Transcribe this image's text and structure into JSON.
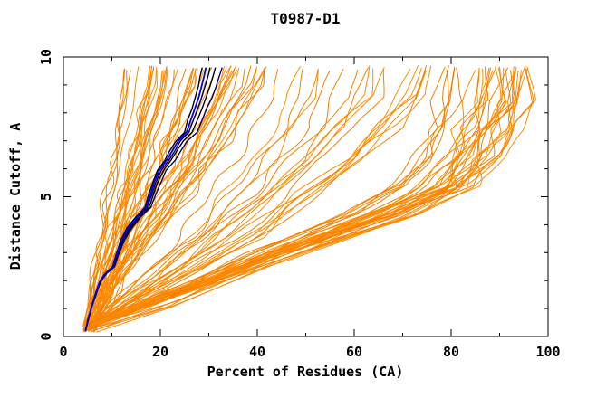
{
  "chart_data": {
    "type": "line",
    "title": "T0987-D1",
    "xlabel": "Percent of Residues (CA)",
    "ylabel": "Distance Cutoff, A",
    "xlim": [
      0,
      100
    ],
    "ylim": [
      0,
      10
    ],
    "x_ticks_major": [
      0,
      20,
      40,
      60,
      80,
      100
    ],
    "x_ticks_minor": [
      10,
      30,
      50,
      70,
      90
    ],
    "y_ticks_major": [
      0,
      5,
      10
    ],
    "y_ticks_minor": [
      1,
      2,
      3,
      4,
      6,
      7,
      8,
      9
    ],
    "grid": false,
    "legend": "none",
    "background_color": "#ffffff",
    "frame_color": "#000000",
    "series": {
      "highlight_bundle": {
        "description": "tight bundle of dark model curves with one bright blue core curve",
        "blue_curve": {
          "color": "#0000ee",
          "width": 1.8,
          "points": [
            [
              4.5,
              0.18
            ],
            [
              5.1,
              0.6
            ],
            [
              5.8,
              1.05
            ],
            [
              6.6,
              1.5
            ],
            [
              7.5,
              1.95
            ],
            [
              8.6,
              2.25
            ],
            [
              10.2,
              2.5
            ],
            [
              11.0,
              2.95
            ],
            [
              12.0,
              3.45
            ],
            [
              13.4,
              3.9
            ],
            [
              15.3,
              4.3
            ],
            [
              17.0,
              4.62
            ],
            [
              17.9,
              5.05
            ],
            [
              18.7,
              5.5
            ],
            [
              19.8,
              5.95
            ],
            [
              21.3,
              6.3
            ],
            [
              22.5,
              6.65
            ],
            [
              23.7,
              7.0
            ],
            [
              25.4,
              7.3
            ],
            [
              26.3,
              7.75
            ],
            [
              27.1,
              8.15
            ],
            [
              27.9,
              8.55
            ],
            [
              28.5,
              8.95
            ],
            [
              29.0,
              9.3
            ],
            [
              29.4,
              9.62
            ]
          ]
        },
        "dark_curves": {
          "count": 4,
          "colors": [
            "#000000",
            "#000060",
            "#000000",
            "#000070"
          ],
          "width": 1.4,
          "top_offsets": [
            -0.8,
            0.8,
            1.9,
            3.3
          ]
        }
      },
      "ensemble": {
        "description": "orange prediction model curves fanning from ~5% at 0A to 12-96% at ~9.6A",
        "colors": [
          "#ff8c00",
          "#f58000"
        ],
        "width": 1,
        "seed": 1987,
        "x_start_range": [
          4.0,
          7.0
        ],
        "y_start_range": [
          0.15,
          0.5
        ],
        "y_top_range": [
          9.5,
          9.7
        ],
        "wiggle": {
          "amp_range": [
            0.2,
            1.0
          ],
          "freq_range": [
            0.8,
            2.2
          ]
        },
        "groups": [
          {
            "name": "steep-left",
            "count": 48,
            "top_x_range": [
              12,
              42
            ],
            "base_points": [
              [
                4.5,
                0.2
              ],
              [
                6,
                0.8
              ],
              [
                8,
                1.6
              ],
              [
                10,
                2.4
              ],
              [
                12.5,
                3.3
              ],
              [
                15,
                4.2
              ],
              [
                17.5,
                5.1
              ],
              [
                20,
                6.0
              ],
              [
                22.5,
                7.0
              ],
              [
                25,
                8.1
              ],
              [
                27,
                9.0
              ],
              [
                28,
                9.62
              ]
            ]
          },
          {
            "name": "mid-fan",
            "count": 20,
            "top_x_range": [
              43,
              78
            ],
            "base_points": [
              [
                5,
                0.2
              ],
              [
                12,
                1.0
              ],
              [
                22,
                2.2
              ],
              [
                32,
                3.5
              ],
              [
                42,
                5.0
              ],
              [
                50,
                6.3
              ],
              [
                56,
                7.5
              ],
              [
                60,
                8.6
              ],
              [
                62,
                9.62
              ]
            ]
          },
          {
            "name": "right-band",
            "count": 34,
            "top_x_range": [
              78,
              96
            ],
            "base_points": [
              [
                5,
                0.2
              ],
              [
                20,
                1.1
              ],
              [
                45,
                2.8
              ],
              [
                70,
                4.3
              ],
              [
                82,
                5.3
              ],
              [
                88,
                6.4
              ],
              [
                91,
                7.4
              ],
              [
                93,
                8.4
              ],
              [
                94.5,
                9.62
              ]
            ]
          }
        ]
      }
    }
  }
}
